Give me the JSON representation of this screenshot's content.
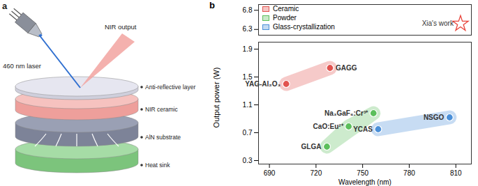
{
  "diagram": {
    "panel_label": "a",
    "laser_label": "460 nm laser",
    "output_label": "NIR output",
    "layers": [
      "Anti-reflective layer",
      "NIR ceramic",
      "AlN substrate",
      "Heat sink"
    ]
  },
  "chart_data": {
    "type": "scatter",
    "panel_label": "b",
    "xlabel": "Wavelength (nm)",
    "ylabel": "Output power (W)",
    "xlim": [
      683,
      820
    ],
    "xticks": [
      690,
      720,
      750,
      780,
      810
    ],
    "ylim": [
      0.25,
      6.95
    ],
    "yticks": [
      0.3,
      0.7,
      1.1,
      1.5,
      1.9,
      6.3,
      6.8
    ],
    "ybreak": [
      2.0,
      6.15
    ],
    "legend": "top-left",
    "series": [
      {
        "name": "Ceramic",
        "color": "#e2534f",
        "labels": [
          "YAG-Al₂O₃",
          "GAGG"
        ],
        "x": [
          700.8,
          729
        ],
        "values": [
          1.4,
          1.63
        ]
      },
      {
        "name": "Powder",
        "color": "#5cbf5c",
        "labels": [
          "Na₃GaF₆:Cr³⁺",
          "CaO:Eu²⁺",
          "GLGA"
        ],
        "x": [
          757,
          741,
          727
        ],
        "values": [
          0.98,
          0.79,
          0.5
        ]
      },
      {
        "name": "Glass-crystallization",
        "color": "#4a8fd8",
        "labels": [
          "YCAS",
          "NSGO"
        ],
        "x": [
          760,
          806
        ],
        "values": [
          0.75,
          0.92
        ]
      }
    ],
    "annotations": [
      {
        "text": "Xia's work",
        "x": 813,
        "y": 6.45,
        "marker": "star",
        "color": "#e8453c"
      }
    ]
  }
}
